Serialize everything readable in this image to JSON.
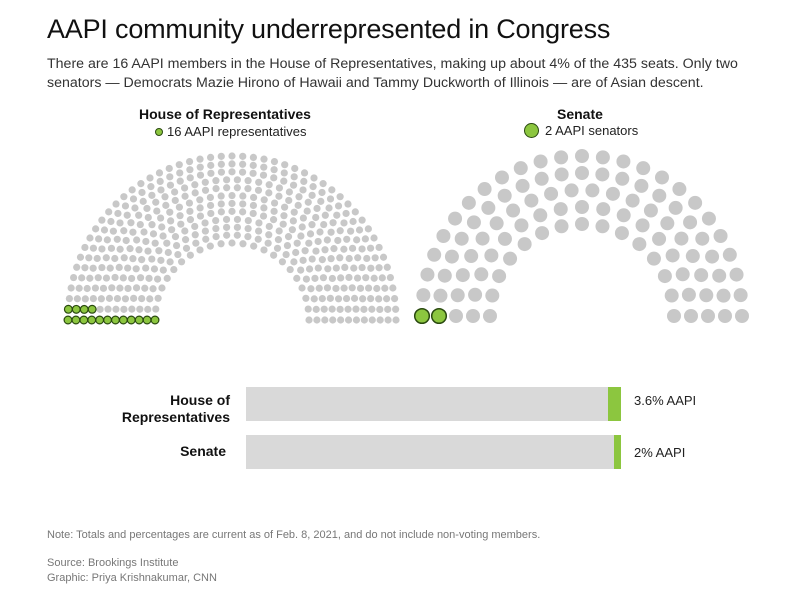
{
  "title": "AAPI community underrepresented in Congress",
  "subtitle": "There are 16 AAPI members in the House of Representatives, making up about 4% of the 435 seats. Only two senators — Democrats Mazie Hirono of Hawaii and Tammy Duckworth of Illinois — are of Asian descent.",
  "colors": {
    "aapi": "#8cc63f",
    "aapi_outline": "#2a4a10",
    "other": "#c8c8c8",
    "bar_track": "#d9d9d9"
  },
  "chart_data": [
    {
      "type": "parliament",
      "title": "House of Representatives",
      "legend": "16 AAPI representatives",
      "total_seats": 435,
      "aapi_seats": 16
    },
    {
      "type": "parliament",
      "title": "Senate",
      "legend": "2 AAPI senators",
      "total_seats": 100,
      "aapi_seats": 2
    },
    {
      "type": "bar",
      "categories": [
        "House of Representatives",
        "Senate"
      ],
      "category_lines": [
        [
          "House of",
          "Representatives"
        ],
        [
          "Senate"
        ]
      ],
      "values": [
        3.6,
        2
      ],
      "value_labels": [
        "3.6% AAPI",
        "2% AAPI"
      ],
      "ylim": [
        0,
        100
      ]
    }
  ],
  "note": "Note: Totals and percentages are current as of Feb. 8, 2021, and do not include non-voting members.",
  "source": "Source: Brookings Institute",
  "credit": "Graphic: Priya Krishnakumar, CNN"
}
